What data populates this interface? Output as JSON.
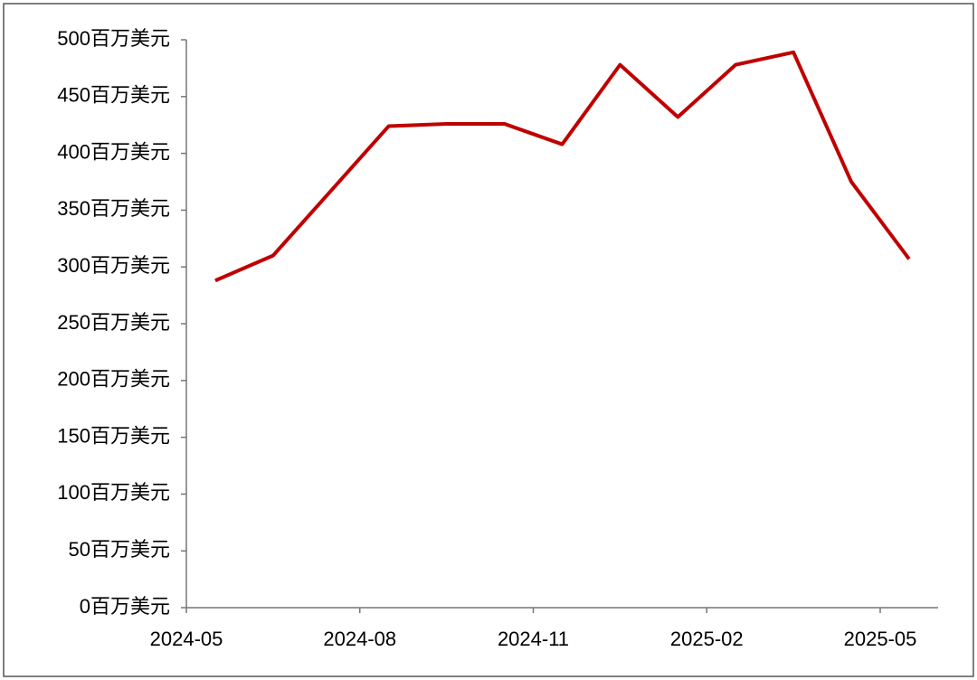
{
  "chart_data": {
    "type": "line",
    "x": [
      "2024-05",
      "2024-06",
      "2024-07",
      "2024-08",
      "2024-09",
      "2024-10",
      "2024-11",
      "2024-12",
      "2025-01",
      "2025-02",
      "2025-03",
      "2025-04",
      "2025-05"
    ],
    "xticks": [
      "2024-05",
      "2024-08",
      "2024-11",
      "2025-02",
      "2025-05"
    ],
    "series": [
      {
        "color": "#c00000",
        "values": [
          288,
          310,
          367,
          424,
          426,
          426,
          408,
          478,
          432,
          478,
          489,
          375,
          307
        ]
      }
    ],
    "ylim": [
      0,
      500
    ],
    "yticks": [
      {
        "value": 0,
        "label": "0百万美元"
      },
      {
        "value": 50,
        "label": "50百万美元"
      },
      {
        "value": 100,
        "label": "100百万美元"
      },
      {
        "value": 150,
        "label": "150百万美元"
      },
      {
        "value": 200,
        "label": "200百万美元"
      },
      {
        "value": 250,
        "label": "250百万美元"
      },
      {
        "value": 300,
        "label": "300百万美元"
      },
      {
        "value": 350,
        "label": "350百万美元"
      },
      {
        "value": 400,
        "label": "400百万美元"
      },
      {
        "value": 450,
        "label": "450百万美元"
      },
      {
        "value": 500,
        "label": "500百万美元"
      }
    ],
    "grid": false
  }
}
